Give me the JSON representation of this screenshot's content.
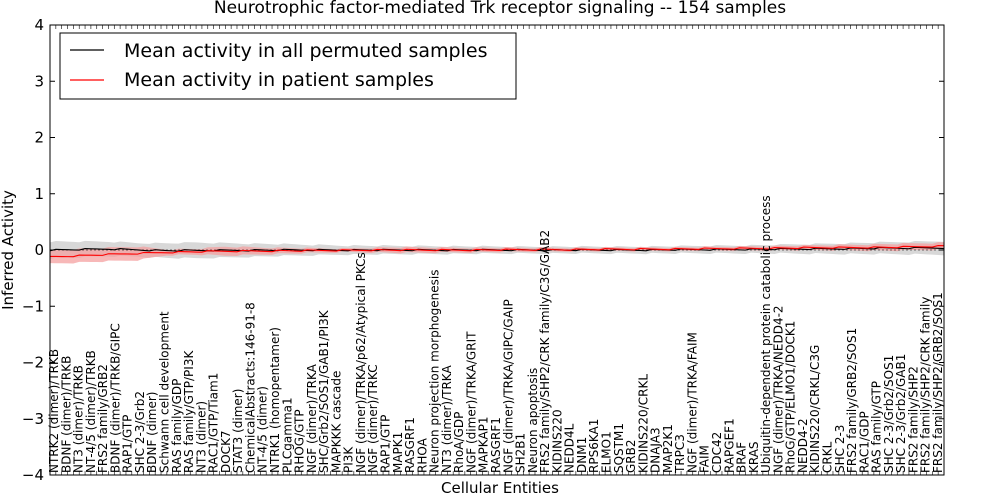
{
  "chart_data": {
    "type": "line",
    "title": "Neurotrophic factor-mediated Trk receptor signaling -- 154 samples",
    "xlabel": "Cellular Entities",
    "ylabel": "Inferred Activity",
    "ylim": [
      -4,
      4
    ],
    "yticks": [
      "4",
      "3",
      "2",
      "1",
      "0",
      "−1",
      "−2",
      "−3",
      "−4"
    ],
    "grid": false,
    "legend_position": "top-left",
    "n_points": 154,
    "series": [
      {
        "name": "Mean activity in all permuted samples",
        "color": "#000000",
        "band_color": "#c8c8c8",
        "knots": [
          [
            0,
            0.0
          ],
          [
            10,
            0.02
          ],
          [
            20,
            -0.01
          ],
          [
            40,
            0.0
          ],
          [
            60,
            0.0
          ],
          [
            100,
            0.0
          ],
          [
            130,
            0.02
          ],
          [
            140,
            0.03
          ],
          [
            153,
            0.04
          ]
        ],
        "band_knots": [
          [
            0,
            0.15
          ],
          [
            15,
            0.12
          ],
          [
            25,
            0.14
          ],
          [
            50,
            0.08
          ],
          [
            80,
            0.06
          ],
          [
            100,
            0.06
          ],
          [
            120,
            0.07
          ],
          [
            140,
            0.1
          ],
          [
            153,
            0.12
          ]
        ]
      },
      {
        "name": "Mean activity in patient samples",
        "color": "#ff0000",
        "band_color": "#f4a0a0",
        "knots": [
          [
            0,
            -0.12
          ],
          [
            5,
            -0.1
          ],
          [
            10,
            -0.08
          ],
          [
            15,
            -0.06
          ],
          [
            20,
            -0.04
          ],
          [
            30,
            -0.02
          ],
          [
            45,
            -0.01
          ],
          [
            55,
            0.0
          ],
          [
            70,
            0.0
          ],
          [
            90,
            0.01
          ],
          [
            110,
            0.02
          ],
          [
            130,
            0.04
          ],
          [
            145,
            0.05
          ],
          [
            153,
            0.07
          ]
        ],
        "band_knots": [
          [
            0,
            0.12
          ],
          [
            10,
            0.12
          ],
          [
            15,
            0.12
          ],
          [
            20,
            0.05
          ],
          [
            25,
            0.05
          ],
          [
            30,
            0.08
          ],
          [
            40,
            0.05
          ],
          [
            50,
            0.03
          ],
          [
            60,
            0.05
          ],
          [
            70,
            0.04
          ],
          [
            90,
            0.03
          ],
          [
            110,
            0.03
          ],
          [
            130,
            0.04
          ],
          [
            145,
            0.06
          ],
          [
            153,
            0.06
          ]
        ]
      }
    ],
    "categories": [
      "NTRK2 (dimer)/TRKB",
      "BDNF (dimer)/TRKB",
      "NT3 (dimer)/TRKB",
      "NT-4/5 (dimer)/TRKB",
      "FRS2 family/GRB2",
      "BDNF (dimer)/TRKB/GIPC",
      "RAP1/GTP",
      "SHC 2-3/Grb2",
      "BDNF (dimer)",
      "Schwann cell development",
      "RAS family/GDP",
      "RAS family/GTP/PI3K",
      "NT3 (dimer)",
      "RAC1/GTP/Tiam1",
      "DOCK7",
      "STAT3 (dimer)",
      "ChemicalAbstracts:146-91-8",
      "NT-4/5 (dimer)",
      "NTRK1 (homopentamer)",
      "PLCgamma1",
      "RHOG/GTP",
      "NGF (dimer)/TRKA",
      "SHC/Grb2/SOS1/GAB1/PI3K",
      "MAPKKK cascade",
      "PI3K",
      "NGF (dimer)/TRKA/p62/Atypical PKCs",
      "NGF (dimer)/TRKC",
      "RAP1/GTP",
      "MAPK1",
      "RASGRF1",
      "RHOA",
      "Neuron projection morphogenesis",
      "NT3 (dimer)/TRKA",
      "RhoA/GDP",
      "NGF (dimer)/TRKA/GRIT",
      "MAPKAP1",
      "RASGRF1",
      "NGF (dimer)/TRKA/GIPC/GAIP",
      "SH2B1",
      "Neuron apoptosis",
      "FRS2 family/SHP2/CRK family/C3G/GAB2",
      "KIDINS220",
      "NEDD4L",
      "DNM1",
      "RPS6KA1",
      "ELMO1",
      "SQSTM1",
      "GRB2",
      "KIDINS220/CRKL",
      "DNAJA3",
      "MAP2K1",
      "TRPC3",
      "NGF (dimer)/TRKA/FAIM",
      "FAIM",
      "CDC42",
      "RAPGEF1",
      "BRAF",
      "KRAS",
      "Ubiquitin-dependent protein catabolic process",
      "NGF (dimer)/TRKA/NEDD4-2",
      "RhoG/GTP/ELMO1/DOCK1",
      "NEDD4-2",
      "KIDINS220/CRKL/C3G",
      "CRKL",
      "SHC 2-3",
      "FRS2 family/GRB2/SOS1",
      "RAC1/GDP",
      "RAS family/GTP",
      "SHC 2-3/Grb2/SOS1",
      "SHC 2-3/Grb2/GAB1",
      "FRS2 family/SHP2",
      "FRS2 family/SHP2/CRK family",
      "FRS2 family/SHP2/GRB2/SOS1"
    ]
  }
}
